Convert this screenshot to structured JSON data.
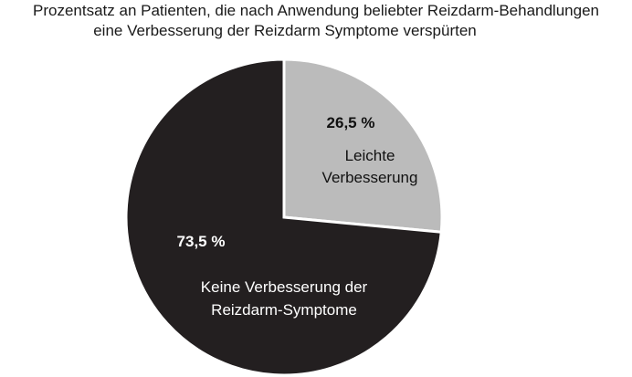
{
  "chart_data": {
    "type": "pie",
    "title": [
      "Prozentsatz an Patienten, die nach Anwendung beliebter Reizdarm-Behandlungen",
      "eine Verbesserung der Reizdarm Symptome verspürten"
    ],
    "slices": [
      {
        "name": "Leichte Verbesserung",
        "label_lines": [
          "Leichte",
          "Verbesserung"
        ],
        "value": 26.5,
        "value_label": "26,5 %",
        "color": "#bbbbbb",
        "text_color": "#111111"
      },
      {
        "name": "Keine Verbesserung der Reizdarm-Symptome",
        "label_lines": [
          "Keine Verbesserung der",
          "Reizdarm-Symptome"
        ],
        "value": 73.5,
        "value_label": "73,5 %",
        "color": "#231f20",
        "text_color": "#ffffff"
      }
    ],
    "legend": "none",
    "grid": false
  }
}
